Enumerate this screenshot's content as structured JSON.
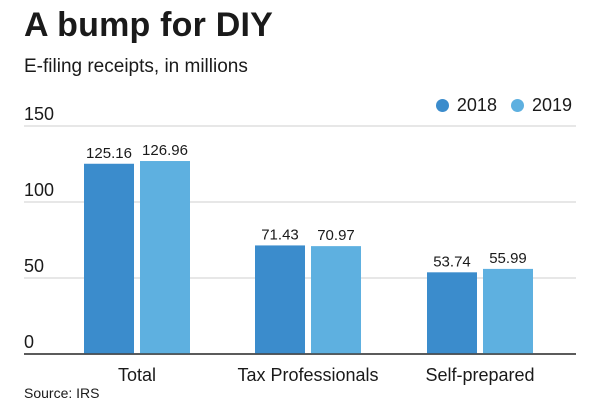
{
  "title": "A bump for DIY",
  "subtitle": "E-filing receipts, in millions",
  "source": "Source: IRS",
  "legend": [
    {
      "label": "2018",
      "color": "#3b8ccc"
    },
    {
      "label": "2019",
      "color": "#5eb0e0"
    }
  ],
  "chart_data": {
    "type": "bar",
    "title": "A bump for DIY",
    "subtitle": "E-filing receipts, in millions",
    "categories": [
      "Total",
      "Tax Professionals",
      "Self-prepared"
    ],
    "series": [
      {
        "name": "2018",
        "values": [
          125.16,
          71.43,
          53.74
        ],
        "labels": [
          "125.16",
          "71.43",
          "53.74"
        ],
        "color": "#3b8ccc"
      },
      {
        "name": "2019",
        "values": [
          126.96,
          70.97,
          55.99
        ],
        "labels": [
          "126.96",
          "70.97",
          "55.99"
        ],
        "color": "#5eb0e0"
      }
    ],
    "yticks": [
      0,
      50,
      100,
      150
    ],
    "ytick_labels": [
      "0",
      "50",
      "100",
      "150"
    ],
    "ylim": [
      0,
      150
    ],
    "xlabel": "",
    "ylabel": "",
    "grid": true,
    "legend_position": "top-right"
  }
}
